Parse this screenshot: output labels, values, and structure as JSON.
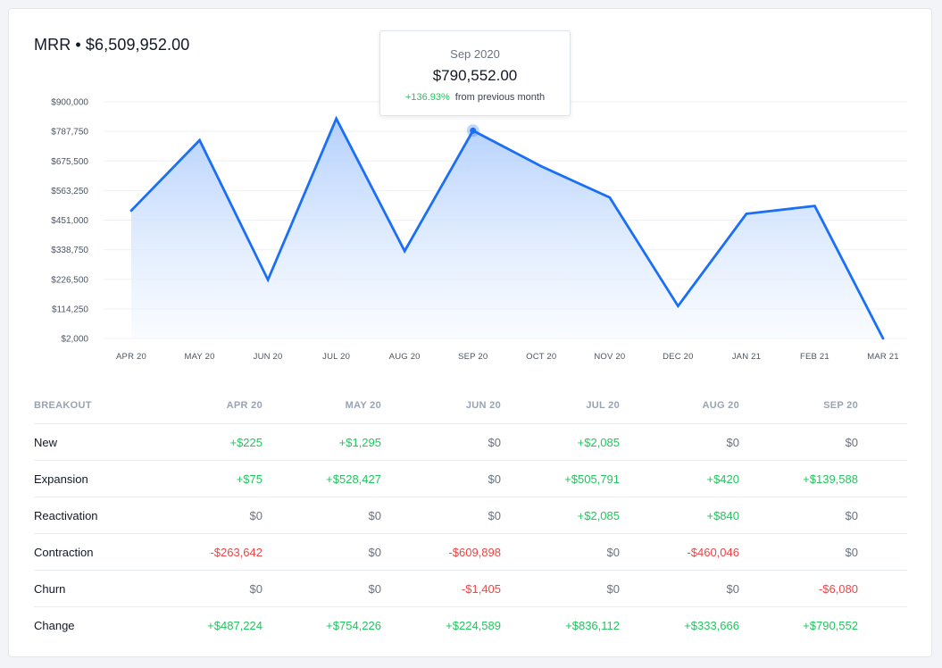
{
  "header": {
    "title": "MRR • $6,509,952.00"
  },
  "colors": {
    "line": "#1a6ff5",
    "fill_top": "#b4d0fd",
    "fill_bottom": "#f5f9ff",
    "positive": "#22c55e",
    "negative": "#ef4444",
    "neutral": "#6b7280",
    "grid": "#edf0f4"
  },
  "tooltip": {
    "date": "Sep 2020",
    "value": "$790,552.00",
    "change_pct": "+136.93%",
    "change_text": "from previous month"
  },
  "chart_data": {
    "type": "area",
    "title": "MRR • $6,509,952.00",
    "xlabel": "",
    "ylabel": "",
    "ylim": [
      2000,
      900000
    ],
    "yticks": [
      2000,
      114250,
      226500,
      338750,
      451000,
      563250,
      675500,
      787750,
      900000
    ],
    "ytick_labels": [
      "$2,000",
      "$114,250",
      "$226,500",
      "$338,750",
      "$451,000",
      "$563,250",
      "$675,500",
      "$787,750",
      "$900,000"
    ],
    "grid": true,
    "categories": [
      "APR 20",
      "MAY 20",
      "JUN 20",
      "JUL 20",
      "AUG 20",
      "SEP 20",
      "OCT 20",
      "NOV 20",
      "DEC 20",
      "JAN 21",
      "FEB 21",
      "MAR 21"
    ],
    "series": [
      {
        "name": "MRR",
        "values": [
          487224,
          754226,
          224589,
          836112,
          333666,
          790552,
          655000,
          537000,
          125000,
          475000,
          505000,
          2000
        ]
      }
    ],
    "highlight_index": 5
  },
  "table": {
    "header_label": "BREAKOUT",
    "columns": [
      "APR 20",
      "MAY 20",
      "JUN 20",
      "JUL 20",
      "AUG 20",
      "SEP 20"
    ],
    "rows": [
      {
        "label": "New",
        "values": [
          "+$225",
          "+$1,295",
          "$0",
          "+$2,085",
          "$0",
          "$0"
        ]
      },
      {
        "label": "Expansion",
        "values": [
          "+$75",
          "+$528,427",
          "$0",
          "+$505,791",
          "+$420",
          "+$139,588"
        ]
      },
      {
        "label": "Reactivation",
        "values": [
          "$0",
          "$0",
          "$0",
          "+$2,085",
          "+$840",
          "$0"
        ]
      },
      {
        "label": "Contraction",
        "values": [
          "-$263,642",
          "$0",
          "-$609,898",
          "$0",
          "-$460,046",
          "$0"
        ]
      },
      {
        "label": "Churn",
        "values": [
          "$0",
          "$0",
          "-$1,405",
          "$0",
          "$0",
          "-$6,080"
        ]
      },
      {
        "label": "Change",
        "values": [
          "+$487,224",
          "+$754,226",
          "+$224,589",
          "+$836,112",
          "+$333,666",
          "+$790,552"
        ]
      }
    ]
  }
}
